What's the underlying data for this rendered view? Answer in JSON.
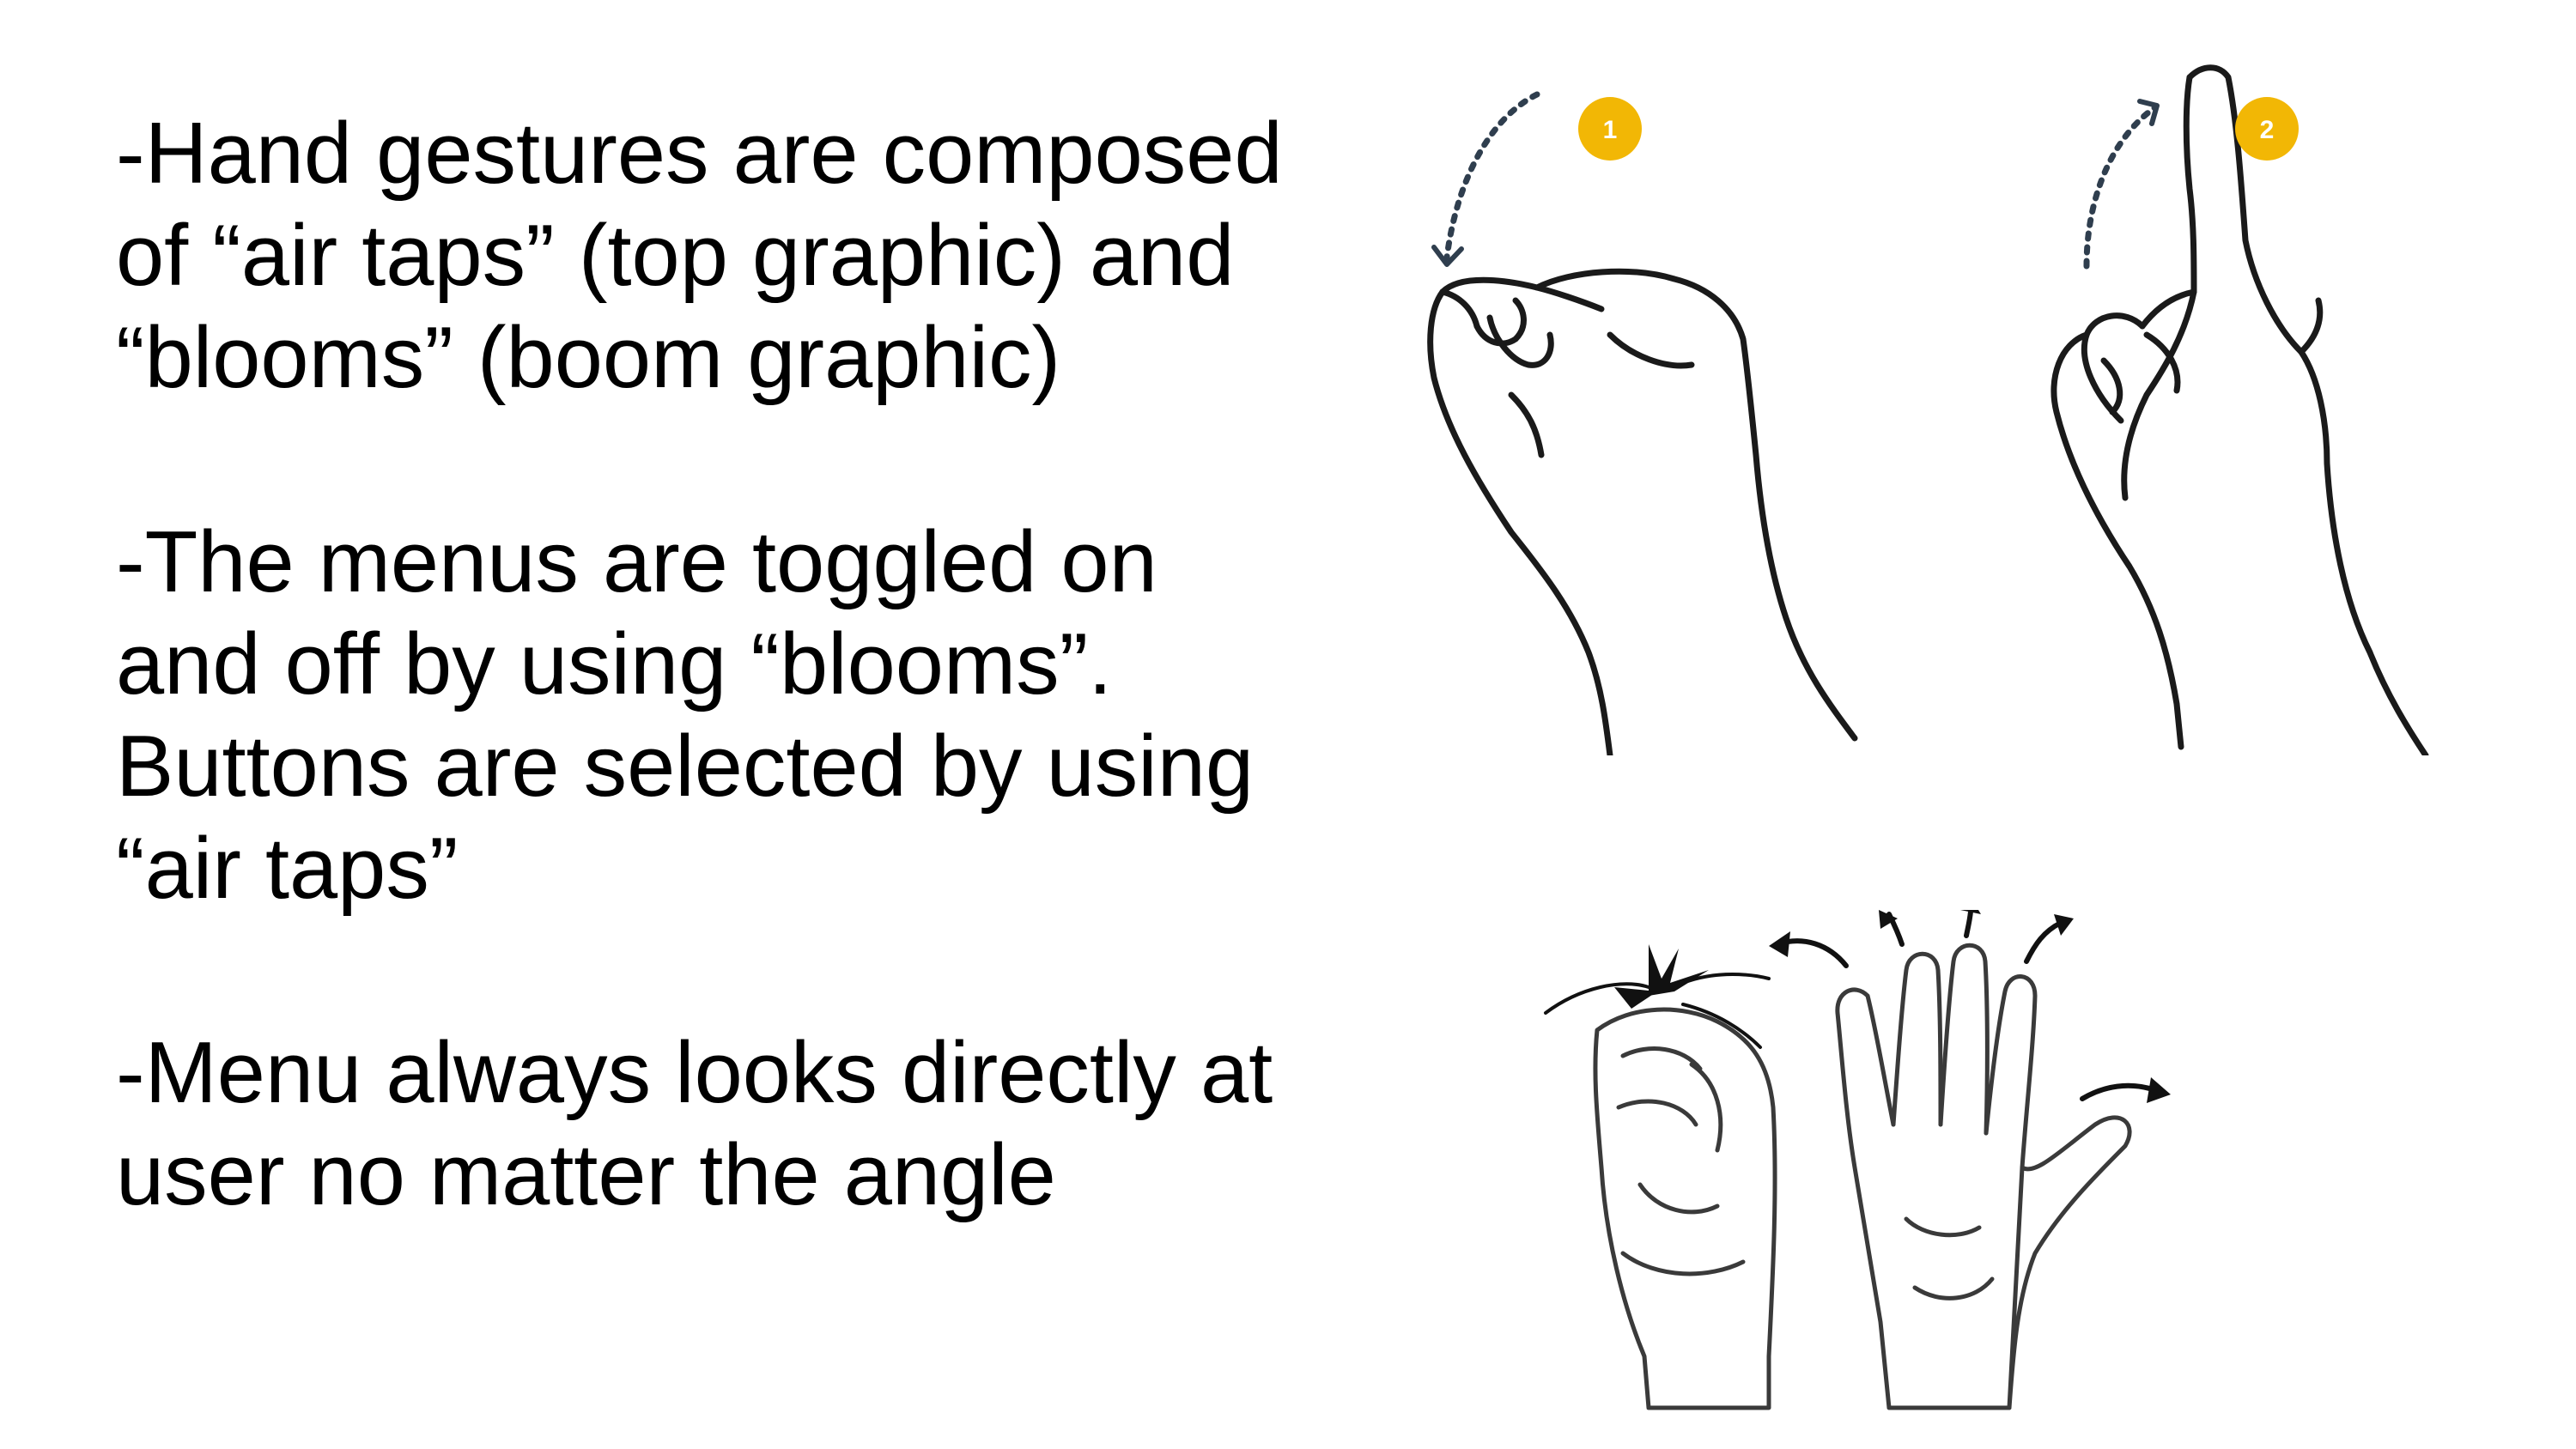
{
  "bullets": [
    {
      "text": "-Hand gestures are composed\nof “air taps” (top graphic) and\n“blooms” (boom graphic)"
    },
    {
      "text": "-The menus are toggled on\nand off by using “blooms”.\nButtons are selected by using\n“air taps”"
    },
    {
      "text": "-Menu always looks directly at\nuser no matter the angle"
    }
  ],
  "air_tap_steps": [
    {
      "number": "1"
    },
    {
      "number": "2"
    }
  ],
  "colors": {
    "badge": "#f2b705",
    "line": "#1a1a1a",
    "dotted_arrow": "#2f3e4e"
  },
  "icons": {
    "air_tap": "air-tap-gesture-icon",
    "bloom": "bloom-gesture-icon"
  }
}
